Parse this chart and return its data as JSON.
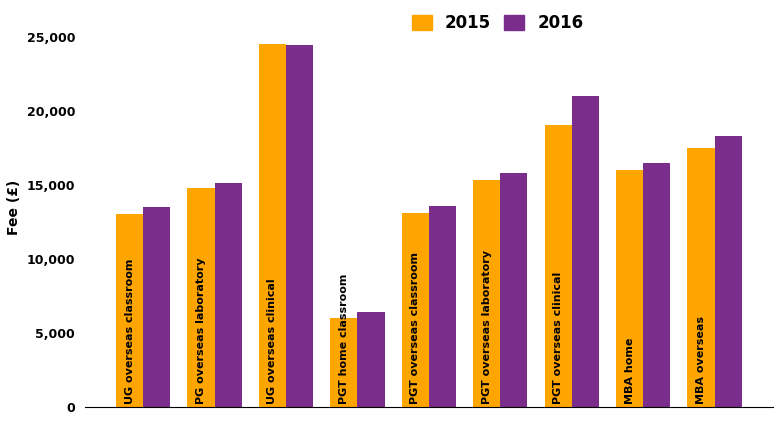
{
  "categories": [
    "UG overseas classroom",
    "PG overseas laboratory",
    "UG overseas clinical",
    "PGT home classroom",
    "PGT overseas classroom",
    "PGT overseas laboratory",
    "PGT overseas clinical",
    "MBA home",
    "MBA overseas"
  ],
  "values_2015": [
    13000,
    14750,
    24500,
    6000,
    13100,
    15300,
    19000,
    16000,
    17500
  ],
  "values_2016": [
    13500,
    15100,
    24400,
    6400,
    13600,
    15800,
    21000,
    16500,
    18300
  ],
  "color_2015": "#FFA500",
  "color_2016": "#7B2D8B",
  "ylabel": "Fee (£)",
  "ylim": [
    0,
    27000
  ],
  "yticks": [
    0,
    5000,
    10000,
    15000,
    20000,
    25000
  ],
  "legend_labels": [
    "2015",
    "2016"
  ],
  "bar_width": 0.38,
  "bg_color": "#FFFFFF",
  "label_fontsize": 8.0,
  "legend_fontsize": 12
}
